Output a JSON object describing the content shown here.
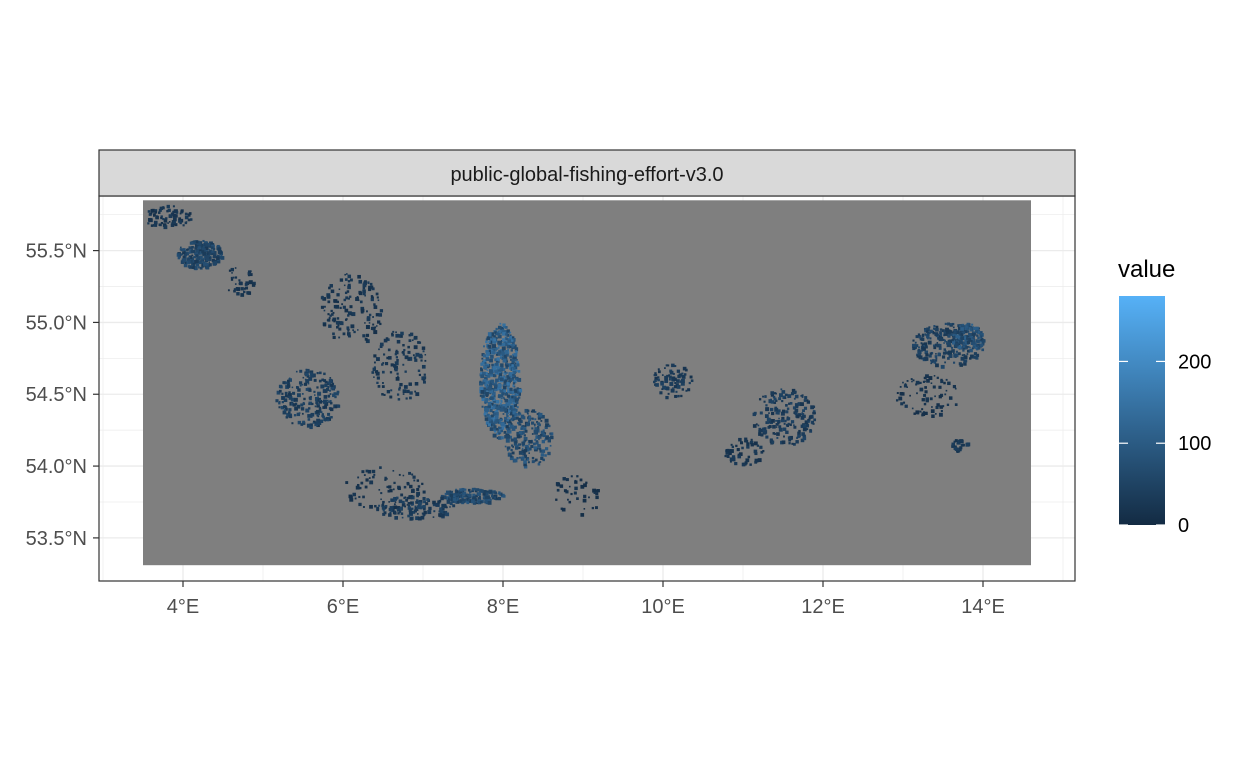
{
  "chart_data": {
    "type": "heatmap",
    "facet_label": "public-global-fishing-effort-v3.0",
    "x_ticks": [
      {
        "value": 4,
        "label": "4°E"
      },
      {
        "value": 6,
        "label": "6°E"
      },
      {
        "value": 8,
        "label": "8°E"
      },
      {
        "value": 10,
        "label": "10°E"
      },
      {
        "value": 12,
        "label": "12°E"
      },
      {
        "value": 14,
        "label": "14°E"
      }
    ],
    "y_ticks": [
      {
        "value": 53.5,
        "label": "53.5°N"
      },
      {
        "value": 54.0,
        "label": "54.0°N"
      },
      {
        "value": 54.5,
        "label": "54.5°N"
      },
      {
        "value": 55.0,
        "label": "55.0°N"
      },
      {
        "value": 55.5,
        "label": "55.5°N"
      }
    ],
    "xlim": [
      2.95,
      15.15
    ],
    "ylim": [
      53.2,
      55.88
    ],
    "raster_extent": {
      "lon": [
        3.5,
        14.6
      ],
      "lat": [
        53.31,
        55.85
      ]
    },
    "na_color": "#7f7f7f",
    "legend": {
      "title": "value",
      "position": "right",
      "range": [
        0,
        280
      ],
      "ticks": [
        {
          "value": 0,
          "label": "0"
        },
        {
          "value": 100,
          "label": "100"
        },
        {
          "value": 200,
          "label": "200"
        }
      ],
      "low_color": "#132b43",
      "high_color": "#56b1f7"
    },
    "clusters": [
      {
        "lon": 4.2,
        "lat": 55.48,
        "r_lon": 0.28,
        "r_lat": 0.1,
        "n": 240,
        "v": 60
      },
      {
        "lon": 3.8,
        "lat": 55.74,
        "r_lon": 0.3,
        "r_lat": 0.08,
        "n": 80,
        "v": 25
      },
      {
        "lon": 4.7,
        "lat": 55.3,
        "r_lon": 0.2,
        "r_lat": 0.1,
        "n": 40,
        "v": 20
      },
      {
        "lon": 6.1,
        "lat": 55.1,
        "r_lon": 0.4,
        "r_lat": 0.25,
        "n": 140,
        "v": 25
      },
      {
        "lon": 5.55,
        "lat": 54.48,
        "r_lon": 0.4,
        "r_lat": 0.2,
        "n": 220,
        "v": 45
      },
      {
        "lon": 6.7,
        "lat": 54.7,
        "r_lon": 0.35,
        "r_lat": 0.25,
        "n": 120,
        "v": 30
      },
      {
        "lon": 7.95,
        "lat": 54.6,
        "r_lon": 0.25,
        "r_lat": 0.4,
        "n": 650,
        "v": 120
      },
      {
        "lon": 8.3,
        "lat": 54.2,
        "r_lon": 0.3,
        "r_lat": 0.2,
        "n": 220,
        "v": 80
      },
      {
        "lon": 7.6,
        "lat": 53.8,
        "r_lon": 0.4,
        "r_lat": 0.05,
        "n": 200,
        "v": 70
      },
      {
        "lon": 6.9,
        "lat": 53.72,
        "r_lon": 0.5,
        "r_lat": 0.08,
        "n": 120,
        "v": 40
      },
      {
        "lon": 6.5,
        "lat": 53.85,
        "r_lon": 0.5,
        "r_lat": 0.15,
        "n": 80,
        "v": 20
      },
      {
        "lon": 8.9,
        "lat": 53.8,
        "r_lon": 0.3,
        "r_lat": 0.15,
        "n": 40,
        "v": 15
      },
      {
        "lon": 10.1,
        "lat": 54.6,
        "r_lon": 0.25,
        "r_lat": 0.12,
        "n": 70,
        "v": 35
      },
      {
        "lon": 11.5,
        "lat": 54.35,
        "r_lon": 0.4,
        "r_lat": 0.2,
        "n": 200,
        "v": 40
      },
      {
        "lon": 11.0,
        "lat": 54.1,
        "r_lon": 0.25,
        "r_lat": 0.1,
        "n": 60,
        "v": 25
      },
      {
        "lon": 13.55,
        "lat": 54.85,
        "r_lon": 0.45,
        "r_lat": 0.15,
        "n": 240,
        "v": 50
      },
      {
        "lon": 13.8,
        "lat": 54.9,
        "r_lon": 0.2,
        "r_lat": 0.1,
        "n": 120,
        "v": 90
      },
      {
        "lon": 13.3,
        "lat": 54.5,
        "r_lon": 0.4,
        "r_lat": 0.15,
        "n": 80,
        "v": 20
      },
      {
        "lon": 13.7,
        "lat": 54.15,
        "r_lon": 0.1,
        "r_lat": 0.05,
        "n": 25,
        "v": 30
      }
    ]
  }
}
